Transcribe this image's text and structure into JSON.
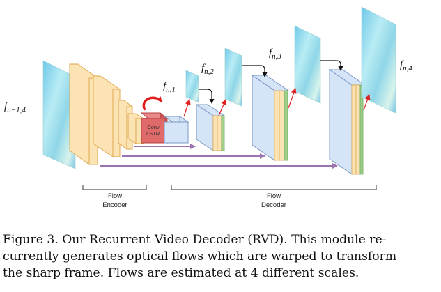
{
  "labels": {
    "input_frame": {
      "base": "f",
      "sub": "n−1,4"
    },
    "flows": [
      {
        "base": "f",
        "sub": "n,1"
      },
      {
        "base": "f",
        "sub": "n,2"
      },
      {
        "base": "f",
        "sub": "n,3"
      },
      {
        "base": "f",
        "sub": "n,4"
      }
    ],
    "conv_lstm": [
      "Conv",
      "LSTM"
    ],
    "flow_encoder": [
      "Flow",
      "Encoder"
    ],
    "flow_decoder": [
      "Flow",
      "Decoder"
    ]
  },
  "caption": {
    "lines": [
      "Figure 3. Our Recurrent Video Decoder (RVD). This module re-",
      "currently generates optical flows which are warped to transform",
      "the sharp frame. Flows are estimated at 4 different scales."
    ]
  },
  "colors": {
    "encoder_fill": "#fbe3b3",
    "encoder_stroke": "#e0a850",
    "lstm_fill": "#e06a6a",
    "decoder_fill": "#d6e4f7",
    "decoder_stroke": "#7a98c4",
    "skip_arrow": "#9a73b0",
    "red_arrow": "#e02020",
    "green_strip": "#9fd08a"
  }
}
